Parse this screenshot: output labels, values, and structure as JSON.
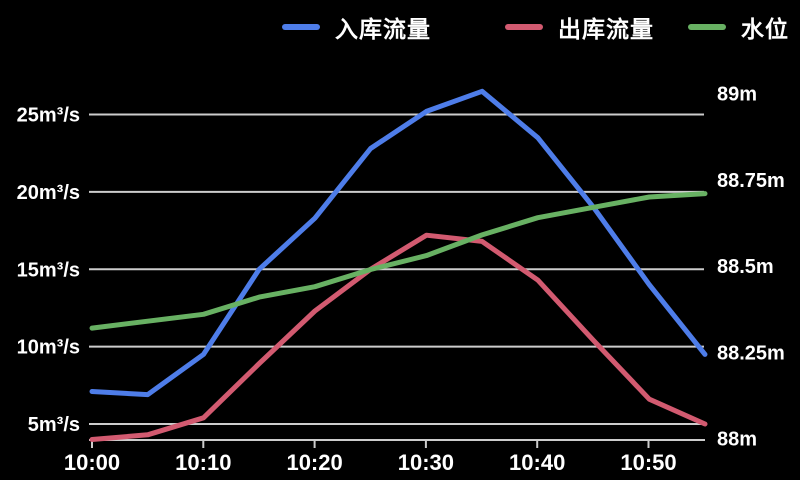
{
  "legend": {
    "items": [
      {
        "id": "inflow",
        "label": "入库流量",
        "color": "#4e7de9"
      },
      {
        "id": "outflow",
        "label": "出库流量",
        "color": "#d25a70"
      },
      {
        "id": "water-level",
        "label": "水位",
        "color": "#68b163"
      }
    ]
  },
  "chart_data": {
    "type": "line",
    "x": [
      "10:00",
      "10:05",
      "10:10",
      "10:15",
      "10:20",
      "10:25",
      "10:30",
      "10:35",
      "10:40",
      "10:45",
      "10:50",
      "10:55"
    ],
    "x_axis": {
      "tick_labels": [
        "10:00",
        "10:10",
        "10:20",
        "10:30",
        "10:40",
        "10:50"
      ]
    },
    "left_axis": {
      "unit": "m³/s",
      "ticks": [
        5,
        10,
        15,
        20,
        25
      ],
      "labels": [
        "5m³/s",
        "10m³/s",
        "15m³/s",
        "20m³/s",
        "25m³/s"
      ],
      "range": [
        5,
        25
      ]
    },
    "right_axis": {
      "unit": "m",
      "ticks": [
        88,
        88.25,
        88.5,
        88.75,
        89
      ],
      "labels": [
        "88m",
        "88.25m",
        "88.5m",
        "88.75m",
        "89m"
      ],
      "range": [
        88,
        89
      ]
    },
    "series": [
      {
        "id": "inflow",
        "name": "入库流量",
        "axis": "left",
        "color": "#4e7de9",
        "values": [
          7.1,
          6.9,
          9.5,
          15,
          18.3,
          22.8,
          25.2,
          26.5,
          23.5,
          19,
          14,
          9.5
        ]
      },
      {
        "id": "outflow",
        "name": "出库流量",
        "axis": "left",
        "color": "#d25a70",
        "values": [
          4,
          4.3,
          5.4,
          8.9,
          12.3,
          15,
          17.2,
          16.8,
          14.3,
          10.4,
          6.6,
          5
        ]
      },
      {
        "id": "water-level",
        "name": "水位",
        "axis": "right",
        "color": "#68b163",
        "values": [
          88.32,
          88.34,
          88.36,
          88.41,
          88.44,
          88.49,
          88.53,
          88.59,
          88.64,
          88.67,
          88.7,
          88.71
        ]
      }
    ],
    "grid": true,
    "legend_position": "top",
    "colors": {
      "grid": "#cccccc",
      "axis": "#cccccc",
      "text": "#ffffff",
      "background": "#000000"
    }
  }
}
